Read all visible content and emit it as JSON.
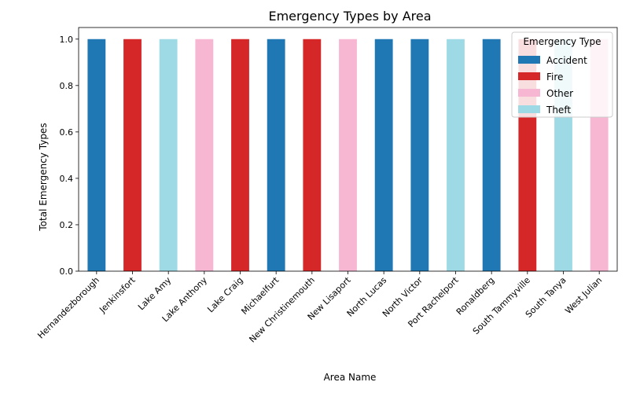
{
  "chart_data": {
    "type": "bar",
    "stacked": true,
    "title": "Emergency Types by Area",
    "xlabel": "Area Name",
    "ylabel": "Total Emergency Types",
    "ylim": [
      0,
      1.05
    ],
    "yticks": [
      "0.0",
      "0.2",
      "0.4",
      "0.6",
      "0.8",
      "1.0"
    ],
    "grid": false,
    "legend_title": "Emergency Type",
    "legend_position": "top-right",
    "categories": [
      "Hernandezborough",
      "Jenkinsfort",
      "Lake Amy",
      "Lake Anthony",
      "Lake Craig",
      "Michaelfurt",
      "New Christinemouth",
      "New Lisaport",
      "North Lucas",
      "North Victor",
      "Port Rachelport",
      "Ronaldberg",
      "South Tammyville",
      "South Tanya",
      "West Julian"
    ],
    "series": [
      {
        "name": "Accident",
        "color": "#1f77b4",
        "values": [
          1,
          0,
          0,
          0,
          0,
          1,
          0,
          0,
          1,
          1,
          0,
          1,
          0,
          0,
          0
        ]
      },
      {
        "name": "Fire",
        "color": "#d62728",
        "values": [
          0,
          1,
          0,
          0,
          1,
          0,
          1,
          0,
          0,
          0,
          0,
          0,
          1,
          0,
          0
        ]
      },
      {
        "name": "Other",
        "color": "#f7b6d2",
        "values": [
          0,
          0,
          0,
          1,
          0,
          0,
          0,
          1,
          0,
          0,
          0,
          0,
          0,
          0,
          1
        ]
      },
      {
        "name": "Theft",
        "color": "#9edae5",
        "values": [
          0,
          0,
          1,
          0,
          0,
          0,
          0,
          0,
          0,
          0,
          1,
          0,
          0,
          1,
          0
        ]
      }
    ]
  }
}
